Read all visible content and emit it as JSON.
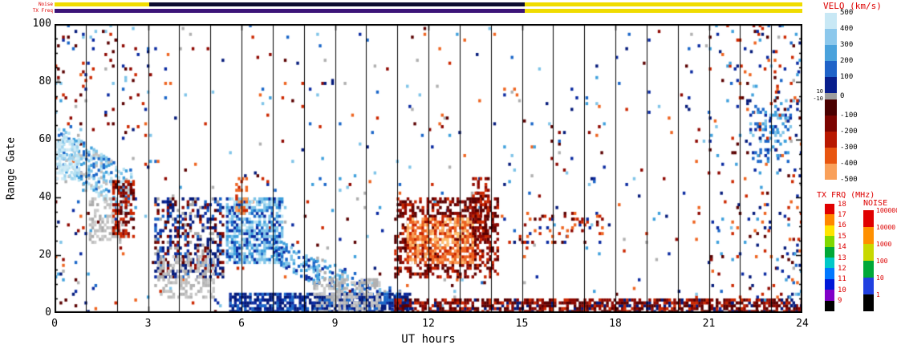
{
  "strips": {
    "noise_label": "Noise",
    "txfreq_label": "TX Freq",
    "noise_segments": [
      {
        "from": 0,
        "to": 3.05,
        "color": "#f0dc00"
      },
      {
        "from": 3.05,
        "to": 15.1,
        "color": "#0d0d30"
      },
      {
        "from": 15.1,
        "to": 24,
        "color": "#f0dc00"
      }
    ],
    "txfreq_segments": [
      {
        "from": 0,
        "to": 15.1,
        "color": "#3c1478"
      },
      {
        "from": 15.1,
        "to": 24,
        "color": "#f0dc00"
      }
    ]
  },
  "legends": {
    "velo": {
      "title": "VELO (km/s)",
      "labels": [
        "500",
        "400",
        "300",
        "200",
        "100",
        "0",
        "-100",
        "-200",
        "-300",
        "-400",
        "-500"
      ],
      "gs_labels": [
        "10",
        "-10"
      ],
      "colors": [
        "#c8e8f5",
        "#8cc8ec",
        "#4aa2dc",
        "#1f63c8",
        "#081e8c",
        "#9e9e9e",
        "#4a0000",
        "#7c0400",
        "#b81800",
        "#e85510",
        "#f9a05a"
      ]
    },
    "txfrq": {
      "title": "TX FRQ (MHz)",
      "labels": [
        "18",
        "17",
        "16",
        "15",
        "14",
        "13",
        "12",
        "11",
        "10",
        "9"
      ],
      "colors": [
        "#e00000",
        "#ff8800",
        "#ffe400",
        "#80d800",
        "#00a838",
        "#00c8c8",
        "#0078ff",
        "#0018d8",
        "#8000c8",
        "#000000"
      ]
    },
    "noise": {
      "title": "NOISE",
      "labels": [
        "100000",
        "10000",
        "1000",
        "100",
        "10",
        "1"
      ],
      "colors": [
        "#e00000",
        "#ff9000",
        "#c8d800",
        "#00a838",
        "#2040e0",
        "#000000"
      ]
    }
  },
  "chart_data": {
    "type": "heatmap",
    "title": "",
    "xlabel": "UT hours",
    "ylabel": "Range Gate",
    "value": "VELO (km/s)",
    "xlim": [
      0,
      24
    ],
    "ylim": [
      0,
      100
    ],
    "xticks": [
      0,
      3,
      6,
      9,
      12,
      15,
      18,
      21,
      24
    ],
    "yticks": [
      0,
      20,
      40,
      60,
      80,
      100
    ],
    "x_minor_gridline_hours": 1,
    "colorbar": {
      "ticks": [
        500,
        400,
        300,
        200,
        100,
        0,
        -100,
        -200,
        -300,
        -400,
        -500
      ],
      "ground_scatter_band": [
        -10,
        10
      ]
    },
    "seed": 20240209,
    "cell": {
      "w_hours": 0.08,
      "h_gates": 1
    },
    "background": {
      "density": 0.016,
      "edge_hours": 1.2,
      "edge_density": 0.05,
      "colors": [
        "#5a0000",
        "#041a7a",
        "#8e0800",
        "#0a2aa0",
        "#cc2800",
        "#3fa0dc",
        "#ee6420",
        "#7fc4e8",
        "#b0b0b0",
        "#1a66c8"
      ]
    },
    "features": [
      {
        "name": "dawn-scatter-streak",
        "shape": "streak",
        "x0": 0.1,
        "x1": 2.5,
        "gc0": 57,
        "gc1": 40,
        "th": 16,
        "density": 0.5,
        "colors": [
          "#b8e2f2",
          "#7fc4e8",
          "#3fa0dc",
          "#c0c0c0",
          "#1a66c8",
          "#b8e2f2"
        ]
      },
      {
        "name": "pale-blue-head",
        "shape": "rect",
        "x0": 0.05,
        "x1": 0.7,
        "g0": 46,
        "g1": 60,
        "density": 0.55,
        "colors": [
          "#cfeaf6",
          "#b8e2f2",
          "#9fd4ee"
        ]
      },
      {
        "name": "gray-patch-early",
        "shape": "rect",
        "x0": 1.1,
        "x1": 2.3,
        "g0": 24,
        "g1": 40,
        "density": 0.35,
        "colors": [
          "#bdbdbd",
          "#ababab",
          "#cccccc"
        ]
      },
      {
        "name": "dark-red-column",
        "shape": "rect",
        "x0": 1.85,
        "x1": 2.5,
        "g0": 26,
        "g1": 46,
        "density": 0.5,
        "colors": [
          "#5a0000",
          "#8e0800",
          "#cc2800"
        ]
      },
      {
        "name": "morning-mixed-region",
        "shape": "rect",
        "x0": 3.2,
        "x1": 5.4,
        "g0": 12,
        "g1": 40,
        "density": 0.45,
        "colors": [
          "#041a7a",
          "#0a2aa0",
          "#5a0000",
          "#8e0800",
          "#a8a8a8",
          "#1a66c8",
          "#041a7a"
        ]
      },
      {
        "name": "gray-patch-morning",
        "shape": "rect",
        "x0": 3.3,
        "x1": 5.1,
        "g0": 5,
        "g1": 20,
        "density": 0.4,
        "colors": [
          "#bdbdbd",
          "#b3b3b3",
          "#c8c8c8"
        ]
      },
      {
        "name": "bright-blue-blob",
        "shape": "rect",
        "x0": 5.5,
        "x1": 7.3,
        "g0": 17,
        "g1": 40,
        "density": 0.7,
        "colors": [
          "#7fc4e8",
          "#3fa0dc",
          "#1a66c8",
          "#b8e2f2",
          "#0a2aa0",
          "#7fc4e8"
        ]
      },
      {
        "name": "orange-spike",
        "shape": "rect",
        "x0": 5.8,
        "x1": 6.15,
        "g0": 34,
        "g1": 47,
        "density": 0.45,
        "colors": [
          "#ee6420",
          "#cc2800",
          "#f89c58"
        ]
      },
      {
        "name": "blue-tail",
        "shape": "streak",
        "x0": 7.0,
        "x1": 8.5,
        "gc0": 22,
        "gc1": 13,
        "th": 9,
        "density": 0.45,
        "colors": [
          "#3fa0dc",
          "#1a66c8",
          "#7fc4e8",
          "#0a2aa0"
        ]
      },
      {
        "name": "blue-descent",
        "shape": "streak",
        "x0": 8.4,
        "x1": 11.1,
        "gc0": 15,
        "gc1": 3,
        "th": 9,
        "density": 0.4,
        "colors": [
          "#3fa0dc",
          "#1a66c8",
          "#0a2aa0",
          "#b0b0b0",
          "#7fc4e8"
        ]
      },
      {
        "name": "bottom-navy-band",
        "shape": "rect",
        "x0": 5.6,
        "x1": 11.4,
        "g0": 0,
        "g1": 7,
        "density": 0.75,
        "colors": [
          "#041a7a",
          "#0a2aa0",
          "#1a66c8",
          "#041a7a"
        ]
      },
      {
        "name": "gray-bottom-patch",
        "shape": "rect",
        "x0": 8.3,
        "x1": 10.4,
        "g0": 0,
        "g1": 12,
        "density": 0.45,
        "colors": [
          "#bdbdbd",
          "#b0b0b0",
          "#cacaca"
        ]
      },
      {
        "name": "storm-red-outer",
        "shape": "rect",
        "x0": 10.9,
        "x1": 14.2,
        "g0": 12,
        "g1": 40,
        "density": 0.5,
        "colors": [
          "#5a0000",
          "#8e0800",
          "#cc2800",
          "#8e0800",
          "#5a0000"
        ]
      },
      {
        "name": "storm-orange-core",
        "shape": "rect",
        "x0": 11.3,
        "x1": 13.4,
        "g0": 17,
        "g1": 33,
        "density": 0.8,
        "colors": [
          "#ee6420",
          "#f89c58",
          "#ffc070",
          "#cc2800",
          "#ee6420",
          "#ffffff"
        ]
      },
      {
        "name": "storm-red-column",
        "shape": "rect",
        "x0": 13.4,
        "x1": 13.9,
        "g0": 25,
        "g1": 47,
        "density": 0.5,
        "colors": [
          "#8e0800",
          "#cc2800",
          "#5a0000"
        ]
      },
      {
        "name": "bottom-red-band",
        "shape": "rect",
        "x0": 10.9,
        "x1": 24,
        "g0": 0,
        "g1": 5,
        "density": 0.7,
        "colors": [
          "#5a0000",
          "#8e0800",
          "#cc2800",
          "#5a0000",
          "#041a7a",
          "#8e0800"
        ]
      },
      {
        "name": "afternoon-dashes",
        "shape": "rect",
        "x0": 14.9,
        "x1": 17.6,
        "g0": 24,
        "g1": 35,
        "density": 0.15,
        "colors": [
          "#8e0800",
          "#5a0000",
          "#ee6420",
          "#0a2aa0",
          "#cc2800"
        ]
      },
      {
        "name": "evening-blue-patch",
        "shape": "rect",
        "x0": 22.3,
        "x1": 23.6,
        "g0": 52,
        "g1": 72,
        "density": 0.25,
        "colors": [
          "#1a66c8",
          "#3fa0dc",
          "#0a2aa0",
          "#7fc4e8"
        ]
      },
      {
        "name": "right-edge-mix",
        "shape": "rect",
        "x0": 21.0,
        "x1": 24.0,
        "g0": 0,
        "g1": 100,
        "density": 0.05,
        "colors": [
          "#5a0000",
          "#0a2aa0",
          "#cc2800",
          "#3fa0dc",
          "#ee6420",
          "#041a7a"
        ]
      },
      {
        "name": "left-top-sparse",
        "shape": "rect",
        "x0": 0.0,
        "x1": 3.0,
        "g0": 60,
        "g1": 100,
        "density": 0.04,
        "colors": [
          "#5a0000",
          "#0a2aa0",
          "#cc2800",
          "#7fc4e8",
          "#8e0800"
        ]
      }
    ]
  }
}
